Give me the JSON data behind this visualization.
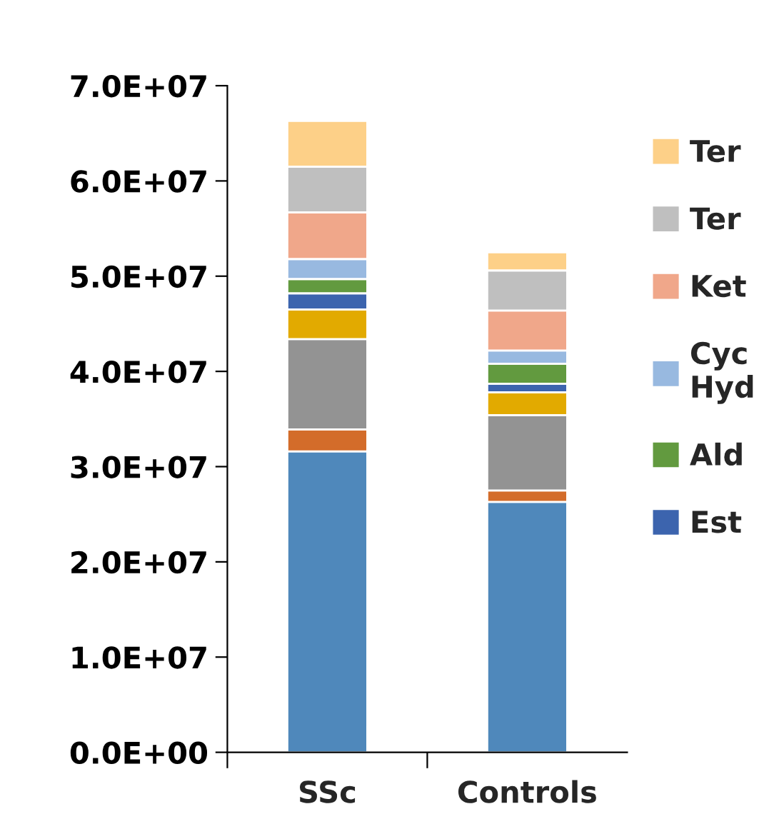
{
  "chart_data": {
    "type": "bar",
    "stacked": true,
    "categories": [
      "SSc",
      "Controls"
    ],
    "series": [
      {
        "color": "#4f88bb",
        "values": [
          31600000,
          26300000
        ]
      },
      {
        "color": "#d36c2a",
        "values": [
          2300000,
          1200000
        ]
      },
      {
        "color": "#939393",
        "values": [
          9500000,
          7900000
        ]
      },
      {
        "color": "#e2aa00",
        "values": [
          3100000,
          2400000
        ]
      },
      {
        "name": "Est",
        "color": "#3c64ae",
        "values": [
          1700000,
          900000
        ]
      },
      {
        "name": "Ald",
        "color": "#629a3f",
        "values": [
          1500000,
          2100000
        ]
      },
      {
        "name": "Cyc\nHyd",
        "color": "#98b9e0",
        "values": [
          2100000,
          1400000
        ]
      },
      {
        "name": "Ket",
        "color": "#f0a78a",
        "values": [
          4900000,
          4200000
        ]
      },
      {
        "name": "Ter",
        "color": "#bfbfbf",
        "values": [
          4800000,
          4200000
        ]
      },
      {
        "name": "Ter",
        "color": "#fdd088",
        "values": [
          4800000,
          1900000
        ]
      }
    ],
    "ylim": [
      0,
      70000000
    ],
    "yticks": [
      {
        "value": 0,
        "label": "0.0E+00"
      },
      {
        "value": 10000000,
        "label": "1.0E+07"
      },
      {
        "value": 20000000,
        "label": "2.0E+07"
      },
      {
        "value": 30000000,
        "label": "3.0E+07"
      },
      {
        "value": 40000000,
        "label": "4.0E+07"
      },
      {
        "value": 50000000,
        "label": "5.0E+07"
      },
      {
        "value": 60000000,
        "label": "6.0E+07"
      },
      {
        "value": 70000000,
        "label": "7.0E+07"
      }
    ],
    "grid": false,
    "legend": "right"
  }
}
